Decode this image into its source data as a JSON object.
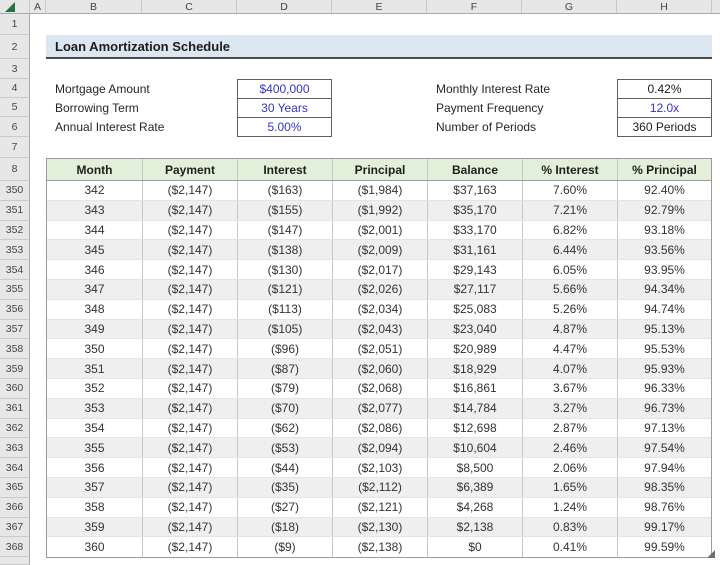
{
  "columns": {
    "letters": [
      "A",
      "B",
      "C",
      "D",
      "E",
      "F",
      "G",
      "H"
    ]
  },
  "rows": {
    "top_numbers": [
      "1",
      "2",
      "3",
      "4",
      "5",
      "6",
      "7",
      "8"
    ],
    "data_numbers": [
      "350",
      "351",
      "352",
      "353",
      "354",
      "355",
      "356",
      "357",
      "358",
      "359",
      "360",
      "361",
      "362",
      "363",
      "364",
      "365",
      "366",
      "367",
      "368"
    ]
  },
  "title": {
    "text": "Loan Amortization Schedule"
  },
  "loan_inputs": [
    {
      "label": "Mortgage Amount",
      "value": "$400,000",
      "is_input": true
    },
    {
      "label": "Borrowing Term",
      "value": "30 Years",
      "is_input": true
    },
    {
      "label": "Annual Interest Rate",
      "value": "5.00%",
      "is_input": true
    }
  ],
  "loan_outputs": [
    {
      "label": "Monthly Interest Rate",
      "value": "0.42%",
      "is_input": false
    },
    {
      "label": "Payment Frequency",
      "value": "12.0x",
      "is_input": true
    },
    {
      "label": "Number of Periods",
      "value": "360 Periods",
      "is_input": false
    }
  ],
  "table": {
    "headers": [
      "Month",
      "Payment",
      "Interest",
      "Principal",
      "Balance",
      "% Interest",
      "% Principal"
    ],
    "rows": [
      [
        "342",
        "($2,147)",
        "($163)",
        "($1,984)",
        "$37,163",
        "7.60%",
        "92.40%"
      ],
      [
        "343",
        "($2,147)",
        "($155)",
        "($1,992)",
        "$35,170",
        "7.21%",
        "92.79%"
      ],
      [
        "344",
        "($2,147)",
        "($147)",
        "($2,001)",
        "$33,170",
        "6.82%",
        "93.18%"
      ],
      [
        "345",
        "($2,147)",
        "($138)",
        "($2,009)",
        "$31,161",
        "6.44%",
        "93.56%"
      ],
      [
        "346",
        "($2,147)",
        "($130)",
        "($2,017)",
        "$29,143",
        "6.05%",
        "93.95%"
      ],
      [
        "347",
        "($2,147)",
        "($121)",
        "($2,026)",
        "$27,117",
        "5.66%",
        "94.34%"
      ],
      [
        "348",
        "($2,147)",
        "($113)",
        "($2,034)",
        "$25,083",
        "5.26%",
        "94.74%"
      ],
      [
        "349",
        "($2,147)",
        "($105)",
        "($2,043)",
        "$23,040",
        "4.87%",
        "95.13%"
      ],
      [
        "350",
        "($2,147)",
        "($96)",
        "($2,051)",
        "$20,989",
        "4.47%",
        "95.53%"
      ],
      [
        "351",
        "($2,147)",
        "($87)",
        "($2,060)",
        "$18,929",
        "4.07%",
        "95.93%"
      ],
      [
        "352",
        "($2,147)",
        "($79)",
        "($2,068)",
        "$16,861",
        "3.67%",
        "96.33%"
      ],
      [
        "353",
        "($2,147)",
        "($70)",
        "($2,077)",
        "$14,784",
        "3.27%",
        "96.73%"
      ],
      [
        "354",
        "($2,147)",
        "($62)",
        "($2,086)",
        "$12,698",
        "2.87%",
        "97.13%"
      ],
      [
        "355",
        "($2,147)",
        "($53)",
        "($2,094)",
        "$10,604",
        "2.46%",
        "97.54%"
      ],
      [
        "356",
        "($2,147)",
        "($44)",
        "($2,103)",
        "$8,500",
        "2.06%",
        "97.94%"
      ],
      [
        "357",
        "($2,147)",
        "($35)",
        "($2,112)",
        "$6,389",
        "1.65%",
        "98.35%"
      ],
      [
        "358",
        "($2,147)",
        "($27)",
        "($2,121)",
        "$4,268",
        "1.24%",
        "98.76%"
      ],
      [
        "359",
        "($2,147)",
        "($18)",
        "($2,130)",
        "$2,138",
        "0.83%",
        "99.17%"
      ],
      [
        "360",
        "($2,147)",
        "($9)",
        "($2,138)",
        "$0",
        "0.41%",
        "99.59%"
      ]
    ]
  },
  "colors": {
    "input_text": "#3434C8",
    "title_fill": "#DCE6F1",
    "table_header_fill": "#E2EFDA",
    "band_fill": "#EFEFEF",
    "header_bar_fill": "#E7E7E7",
    "select_all_green": "#217346"
  }
}
